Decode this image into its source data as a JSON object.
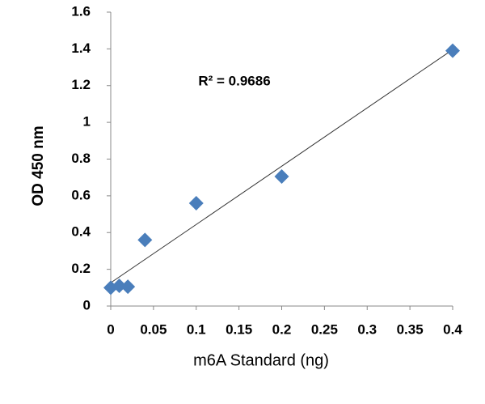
{
  "chart_data": {
    "type": "scatter",
    "x_label": "m6A Standard (ng)",
    "y_label": "OD 450 nm",
    "annotation": "R² = 0.9686",
    "series": [
      {
        "color": "#4a7ebb",
        "x": [
          0,
          0.01,
          0.02,
          0.04,
          0.1,
          0.2,
          0.4
        ],
        "values": [
          0.1,
          0.11,
          0.105,
          0.36,
          0.56,
          0.705,
          1.39
        ]
      }
    ],
    "trendline": true,
    "xlim": [
      0,
      0.4
    ],
    "xticks": [
      0,
      0.05,
      0.1,
      0.15,
      0.2,
      0.25,
      0.3,
      0.35,
      0.4
    ],
    "ylim": [
      0,
      1.6
    ],
    "yticks": [
      0,
      0.2,
      0.4,
      0.6,
      0.8,
      1,
      1.2,
      1.4,
      1.6
    ],
    "grid": false
  }
}
